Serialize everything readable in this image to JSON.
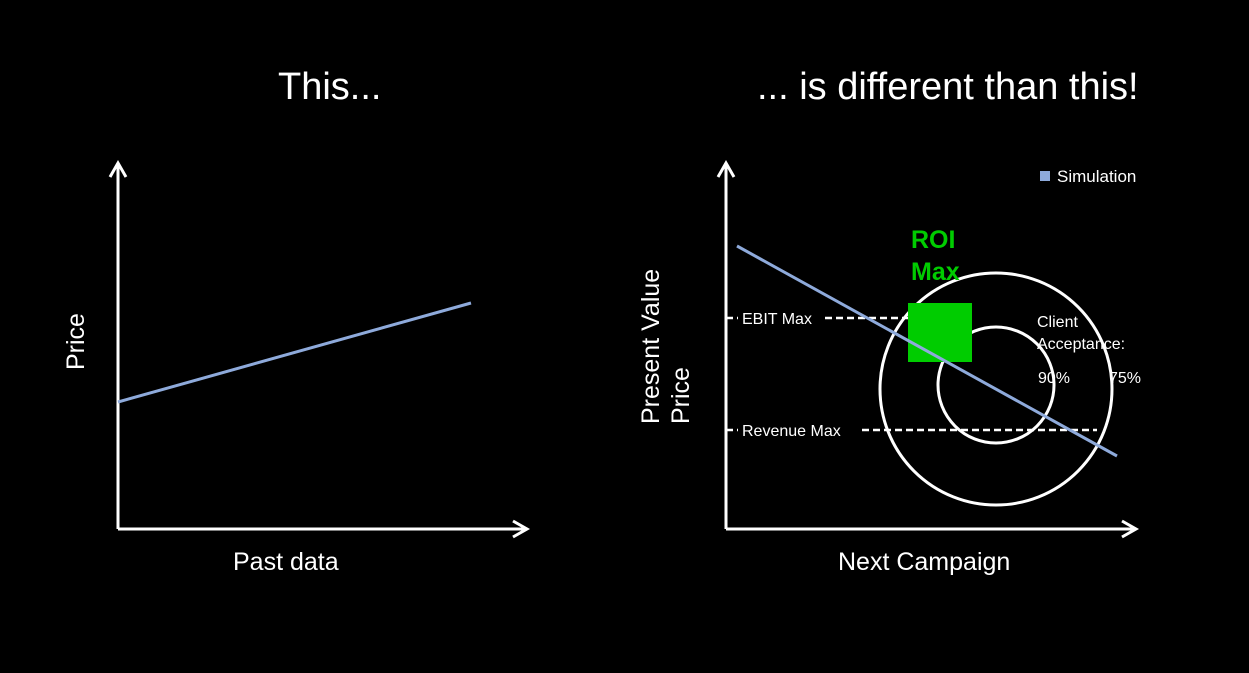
{
  "left_panel": {
    "title": "This...",
    "xlabel": "Past data",
    "ylabel": "Price"
  },
  "right_panel": {
    "title": "... is different than this!",
    "xlabel": "Next Campaign",
    "ylabel_line1": "Present Value",
    "ylabel_line2": "Price",
    "legend_label": "Simulation",
    "roi_label_line1": "ROI",
    "roi_label_line2": "Max",
    "ebit_label": "EBIT Max",
    "revenue_label": "Revenue Max",
    "acceptance_label_line1": "Client",
    "acceptance_label_line2": "Acceptance:",
    "acceptance_inner": "90%",
    "acceptance_outer": "75%"
  },
  "colors": {
    "background": "#000000",
    "axes": "#ffffff",
    "trend_line": "#8eaadb",
    "roi_box": "#00cc00",
    "roi_text": "#00cc00",
    "legend_marker": "#8eaadb"
  },
  "icons": {
    "legend_marker": "square-marker-icon",
    "axis_arrow": "arrow-head-icon"
  }
}
